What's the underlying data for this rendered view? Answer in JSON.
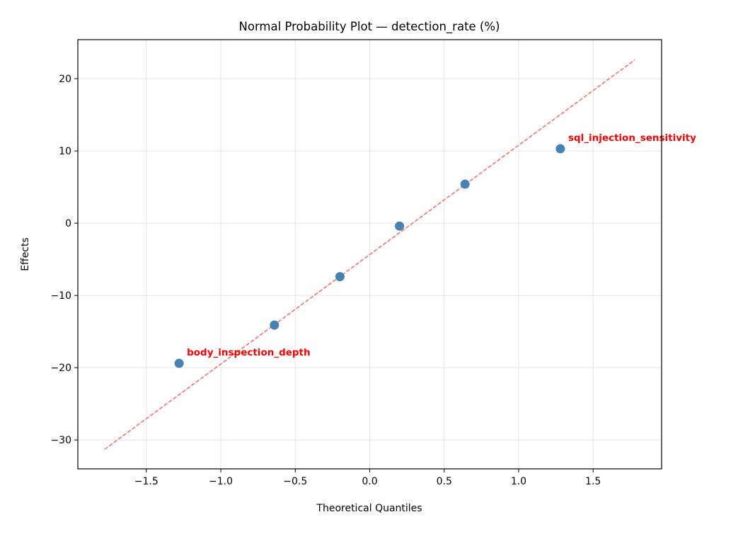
{
  "chart_data": {
    "type": "scatter",
    "title": "Normal Probability Plot — detection_rate (%)",
    "xlabel": "Theoretical Quantiles",
    "ylabel": "Effects",
    "xlim": [
      -1.96,
      1.96
    ],
    "ylim": [
      -34.0,
      25.4
    ],
    "grid": true,
    "xticks": [
      -1.5,
      -1.0,
      -0.5,
      0.0,
      0.5,
      1.0,
      1.5
    ],
    "xtick_labels": [
      "−1.5",
      "−1.0",
      "−0.5",
      "0.0",
      "0.5",
      "1.0",
      "1.5"
    ],
    "yticks": [
      20,
      10,
      0,
      -10,
      -20,
      -30
    ],
    "ytick_labels": [
      "20",
      "10",
      "0",
      "−10",
      "−20",
      "−30"
    ],
    "points": [
      {
        "x": -1.28,
        "y": -19.4,
        "label": "body_inspection_depth"
      },
      {
        "x": -0.64,
        "y": -14.1,
        "label": ""
      },
      {
        "x": -0.2,
        "y": -7.4,
        "label": ""
      },
      {
        "x": 0.2,
        "y": -0.4,
        "label": ""
      },
      {
        "x": 0.64,
        "y": 5.4,
        "label": ""
      },
      {
        "x": 1.28,
        "y": 10.3,
        "label": "sql_injection_sensitivity"
      }
    ],
    "reference_line": {
      "x": [
        -1.78,
        1.78
      ],
      "y": [
        -31.3,
        22.6
      ]
    },
    "colors": {
      "points": "#4682b4",
      "reference_line": "#ff6666",
      "labels": "#ff0000",
      "grid": "#e5e5e5"
    }
  }
}
